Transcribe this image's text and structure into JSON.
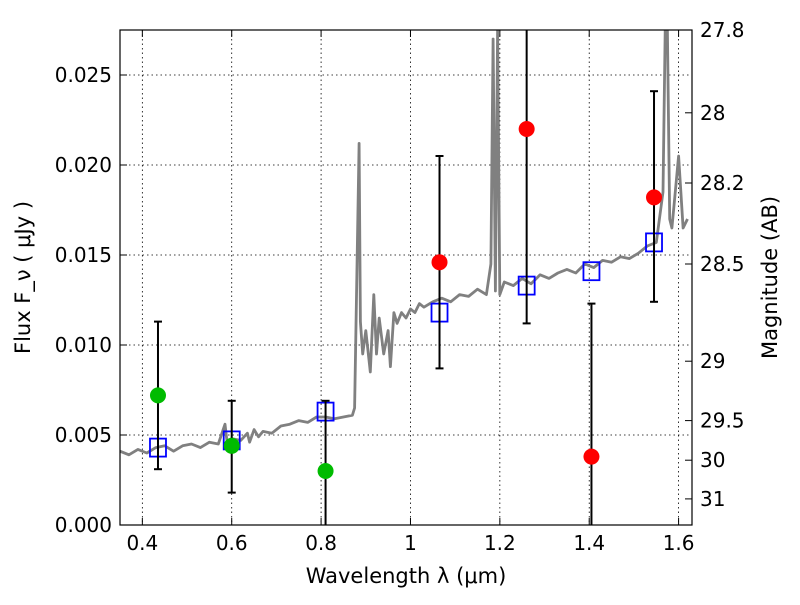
{
  "chart_data": {
    "type": "scatter",
    "xlabel": "Wavelength  λ (μm)",
    "ylabel": "Flux  F_ν  ( μJy )",
    "y2label": "Magnitude (AB)",
    "xlim": [
      0.35,
      1.63
    ],
    "ylim": [
      0.0,
      0.0275
    ],
    "grid": true,
    "x_ticks": [
      0.4,
      0.6,
      0.8,
      1.0,
      1.2,
      1.4,
      1.6
    ],
    "x_tick_labels": [
      "0.4",
      "0.6",
      "0.8",
      "1",
      "1.2",
      "1.4",
      "1.6"
    ],
    "y_ticks": [
      0.0,
      0.005,
      0.01,
      0.015,
      0.02,
      0.025
    ],
    "y_tick_labels": [
      "0.000",
      "0.005",
      "0.010",
      "0.015",
      "0.020",
      "0.025"
    ],
    "y2_ticks": [
      {
        "label": "27.8",
        "flux": 0.0275
      },
      {
        "label": "28",
        "flux": 0.0229
      },
      {
        "label": "28.2",
        "flux": 0.019
      },
      {
        "label": "28.5",
        "flux": 0.0145
      },
      {
        "label": "29",
        "flux": 0.0091
      },
      {
        "label": "29.5",
        "flux": 0.0058
      },
      {
        "label": "30",
        "flux": 0.0036
      },
      {
        "label": "31",
        "flux": 0.00145
      }
    ],
    "series": [
      {
        "kind": "line",
        "color": "#808080",
        "x": [
          0.35,
          0.37,
          0.39,
          0.41,
          0.43,
          0.45,
          0.47,
          0.49,
          0.51,
          0.53,
          0.55,
          0.57,
          0.585,
          0.59,
          0.6,
          0.62,
          0.635,
          0.64,
          0.65,
          0.66,
          0.67,
          0.69,
          0.71,
          0.73,
          0.75,
          0.77,
          0.79,
          0.81,
          0.83,
          0.85,
          0.87,
          0.875,
          0.885,
          0.888,
          0.893,
          0.9,
          0.91,
          0.918,
          0.924,
          0.93,
          0.94,
          0.95,
          0.955,
          0.963,
          0.97,
          0.98,
          0.99,
          1.0,
          1.01,
          1.02,
          1.03,
          1.05,
          1.07,
          1.09,
          1.11,
          1.13,
          1.15,
          1.17,
          1.18,
          1.185,
          1.19,
          1.195,
          1.2,
          1.21,
          1.23,
          1.25,
          1.27,
          1.29,
          1.31,
          1.33,
          1.35,
          1.37,
          1.39,
          1.41,
          1.43,
          1.45,
          1.47,
          1.49,
          1.51,
          1.53,
          1.55,
          1.565,
          1.57,
          1.575,
          1.58,
          1.585,
          1.59,
          1.6,
          1.61,
          1.62
        ],
        "y": [
          0.0041,
          0.0039,
          0.0042,
          0.004,
          0.0043,
          0.0044,
          0.0041,
          0.0044,
          0.0045,
          0.0043,
          0.0046,
          0.0045,
          0.0056,
          0.0045,
          0.0048,
          0.0047,
          0.0051,
          0.0046,
          0.0053,
          0.0049,
          0.0052,
          0.0051,
          0.0055,
          0.0056,
          0.0058,
          0.0057,
          0.006,
          0.006,
          0.0059,
          0.006,
          0.0061,
          0.0065,
          0.0212,
          0.0113,
          0.0095,
          0.0108,
          0.0085,
          0.0128,
          0.0095,
          0.0115,
          0.0095,
          0.0108,
          0.0088,
          0.0118,
          0.0112,
          0.0118,
          0.0115,
          0.012,
          0.0118,
          0.0123,
          0.0121,
          0.0124,
          0.0126,
          0.0124,
          0.0128,
          0.0127,
          0.0131,
          0.0128,
          0.0145,
          0.027,
          0.013,
          0.0275,
          0.0128,
          0.0135,
          0.0133,
          0.0137,
          0.0134,
          0.0139,
          0.0137,
          0.014,
          0.0142,
          0.014,
          0.0145,
          0.0143,
          0.0147,
          0.0146,
          0.0149,
          0.0148,
          0.0151,
          0.0155,
          0.0157,
          0.0185,
          0.0275,
          0.0275,
          0.017,
          0.0165,
          0.0178,
          0.0205,
          0.0165,
          0.017
        ]
      },
      {
        "kind": "squares",
        "color": "#0000ff",
        "x": [
          0.435,
          0.6,
          0.81,
          1.065,
          1.26,
          1.405,
          1.545
        ],
        "y": [
          0.0043,
          0.0047,
          0.0063,
          0.0118,
          0.0133,
          0.0141,
          0.0157
        ]
      },
      {
        "kind": "points",
        "color": "#00bb00",
        "x": [
          0.435,
          0.6,
          0.81
        ],
        "y": [
          0.0072,
          0.0044,
          0.003
        ],
        "yerr_low": [
          0.0031,
          0.0018,
          0.0
        ],
        "yerr_high": [
          0.0113,
          0.0069,
          0.0069
        ]
      },
      {
        "kind": "points",
        "color": "#ff0000",
        "x": [
          1.065,
          1.26,
          1.405,
          1.545
        ],
        "y": [
          0.0146,
          0.022,
          0.0038,
          0.0182
        ],
        "yerr_low": [
          0.0087,
          0.0112,
          0.0,
          0.0124
        ],
        "yerr_high": [
          0.0205,
          0.0275,
          0.0123,
          0.0241
        ]
      }
    ]
  }
}
